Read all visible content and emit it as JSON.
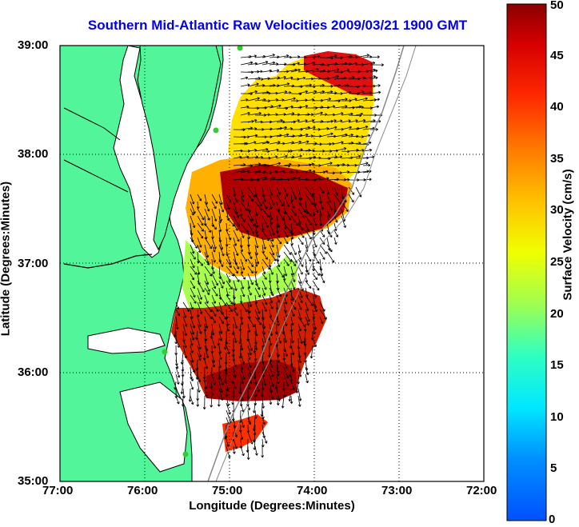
{
  "title": "Southern Mid-Atlantic Raw Velocities 2009/03/21 1900 GMT",
  "xlabel": "Longitude (Degrees:Minutes)",
  "ylabel": "Latitude (Degrees:Minutes)",
  "x_ticks": [
    "77:00",
    "76:00",
    "75:00",
    "74:00",
    "73:00",
    "72:00"
  ],
  "y_ticks": [
    "39:00",
    "38:00",
    "37:00",
    "36:00",
    "35:00"
  ],
  "colorbar": {
    "label": "Surface Velocity (cm/s)",
    "ticks": [
      "0",
      "5",
      "10",
      "15",
      "20",
      "25",
      "30",
      "35",
      "40",
      "45",
      "50"
    ],
    "range": [
      0,
      50
    ],
    "colormap": "jet"
  },
  "colors": {
    "land": "#52f59a",
    "water": "#ffffff",
    "coastline": "#000000",
    "title": "#0000ee",
    "bathymetry": "#888888",
    "station": "#33cc33"
  },
  "map": {
    "lon_range": [
      -77,
      -72
    ],
    "lat_range": [
      35,
      39
    ],
    "grid": "dotted"
  }
}
